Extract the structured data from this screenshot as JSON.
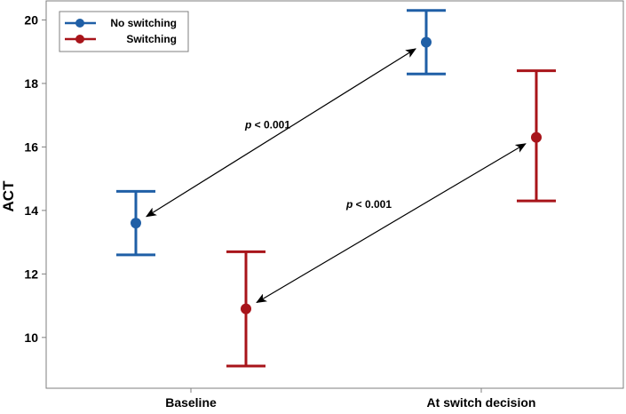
{
  "chart_data": {
    "type": "scatter",
    "subtype": "point-with-error-bars",
    "categories": [
      "Baseline",
      "At switch decision"
    ],
    "xlabel": "",
    "ylabel": "ACT",
    "ylim": [
      8.4,
      20.6
    ],
    "yticks": [
      10,
      12,
      14,
      16,
      18,
      20
    ],
    "grid": false,
    "legend_position": "top-left",
    "series": [
      {
        "name": "No switching",
        "color": "#1f5fa6",
        "points": [
          {
            "category": "Baseline",
            "mean": 13.6,
            "lower": 12.6,
            "upper": 14.6
          },
          {
            "category": "At switch decision",
            "mean": 19.3,
            "lower": 18.3,
            "upper": 20.3
          }
        ]
      },
      {
        "name": "Switching",
        "color": "#a8141a",
        "points": [
          {
            "category": "Baseline",
            "mean": 10.9,
            "lower": 9.1,
            "upper": 12.7
          },
          {
            "category": "At switch decision",
            "mean": 16.3,
            "lower": 14.3,
            "upper": 18.4
          }
        ]
      }
    ],
    "annotations": [
      {
        "italic": "p",
        "text": " < 0.001",
        "series": "No switching"
      },
      {
        "italic": "p",
        "text": " < 0.001",
        "series": "Switching"
      }
    ]
  }
}
